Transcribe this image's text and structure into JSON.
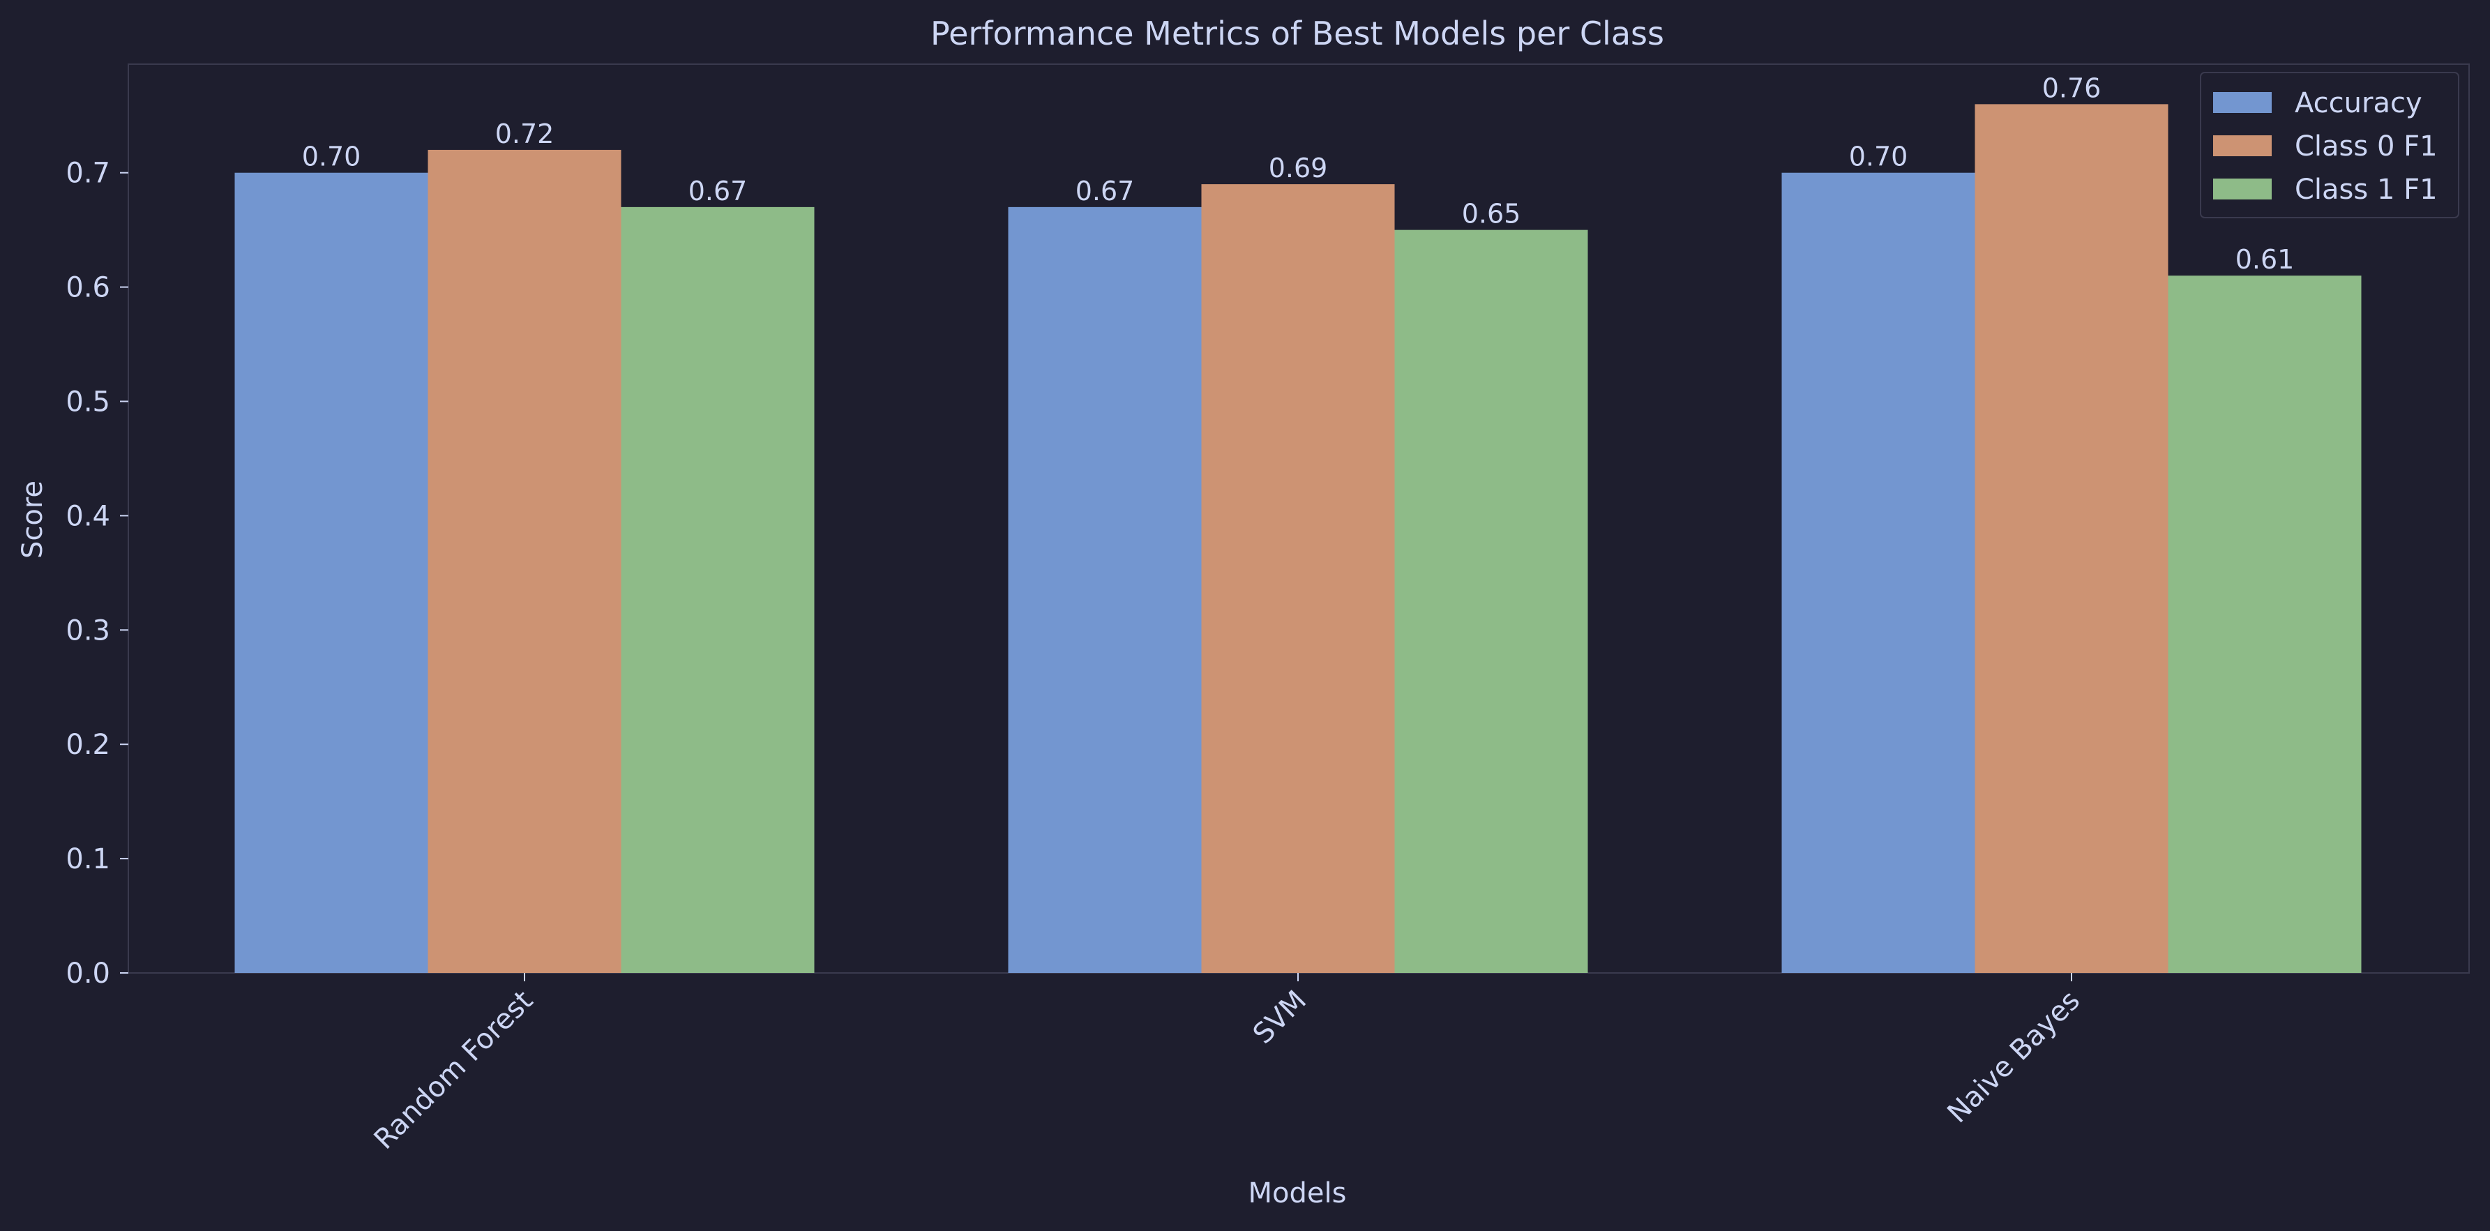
{
  "chart_data": {
    "type": "bar",
    "title": "Performance Metrics of Best Models per Class",
    "xlabel": "Models",
    "ylabel": "Score",
    "categories": [
      "Random Forest",
      "SVM",
      "Naive Bayes"
    ],
    "series": [
      {
        "name": "Accuracy",
        "values": [
          0.7,
          0.67,
          0.7
        ],
        "labels": [
          "0.70",
          "0.67",
          "0.70"
        ],
        "color": "#7396d0"
      },
      {
        "name": "Class 0 F1",
        "values": [
          0.72,
          0.69,
          0.76
        ],
        "labels": [
          "0.72",
          "0.69",
          "0.76"
        ],
        "color": "#cd9373"
      },
      {
        "name": "Class 1 F1",
        "values": [
          0.67,
          0.65,
          0.61
        ],
        "labels": [
          "0.67",
          "0.65",
          "0.61"
        ],
        "color": "#8ebb88"
      }
    ],
    "ylim": [
      0,
      0.795
    ],
    "yticks": [
      "0.0",
      "0.1",
      "0.2",
      "0.3",
      "0.4",
      "0.5",
      "0.6",
      "0.7"
    ],
    "grid": false,
    "legend_position": "top-right",
    "colors": {
      "background": "#1e1e2e",
      "text": "#cdd6f4",
      "frame": "#3a3a4e"
    }
  }
}
